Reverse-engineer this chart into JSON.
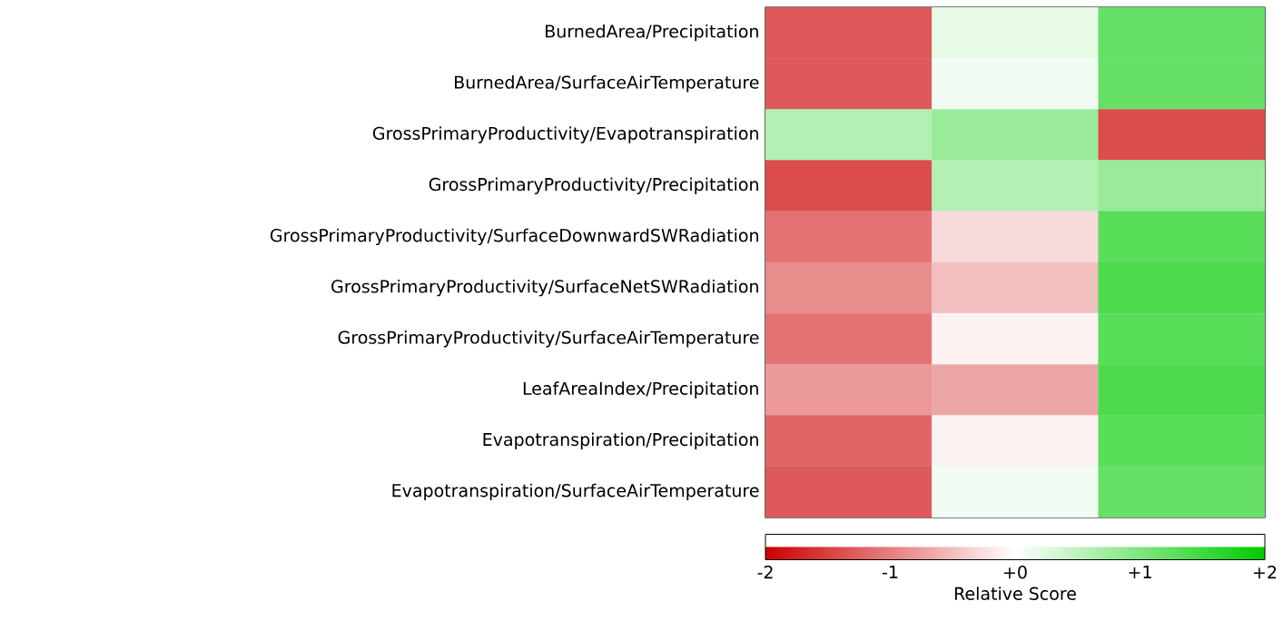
{
  "chart_data": {
    "type": "heatmap",
    "categories": [
      null,
      null,
      null
    ],
    "y_categories": [
      "BurnedArea/Precipitation",
      "BurnedArea/SurfaceAirTemperature",
      "GrossPrimaryProductivity/Evapotranspiration",
      "GrossPrimaryProductivity/Precipitation",
      "GrossPrimaryProductivity/SurfaceDownwardSWRadiation",
      "GrossPrimaryProductivity/SurfaceNetSWRadiation",
      "GrossPrimaryProductivity/SurfaceAirTemperature",
      "LeafAreaIndex/Precipitation",
      "Evapotranspiration/Precipitation",
      "Evapotranspiration/SurfaceAirTemperature"
    ],
    "cells": [
      [
        -1.3,
        0.2,
        1.2
      ],
      [
        -1.3,
        0.1,
        1.2
      ],
      [
        0.6,
        0.8,
        -1.4
      ],
      [
        -1.4,
        0.6,
        0.8
      ],
      [
        -1.1,
        -0.3,
        1.3
      ],
      [
        -0.9,
        -0.5,
        1.4
      ],
      [
        -1.1,
        -0.1,
        1.3
      ],
      [
        -0.8,
        -0.7,
        1.4
      ],
      [
        -1.2,
        -0.1,
        1.3
      ],
      [
        -1.3,
        0.1,
        1.2
      ]
    ],
    "clim": [
      -2,
      2
    ],
    "cticks": [
      {
        "value": -2,
        "label": "-2"
      },
      {
        "value": -1,
        "label": "-1"
      },
      {
        "value": 0,
        "label": "+0"
      },
      {
        "value": 1,
        "label": "+1"
      },
      {
        "value": 2,
        "label": "+2"
      }
    ],
    "clabel": "Relative Score"
  }
}
